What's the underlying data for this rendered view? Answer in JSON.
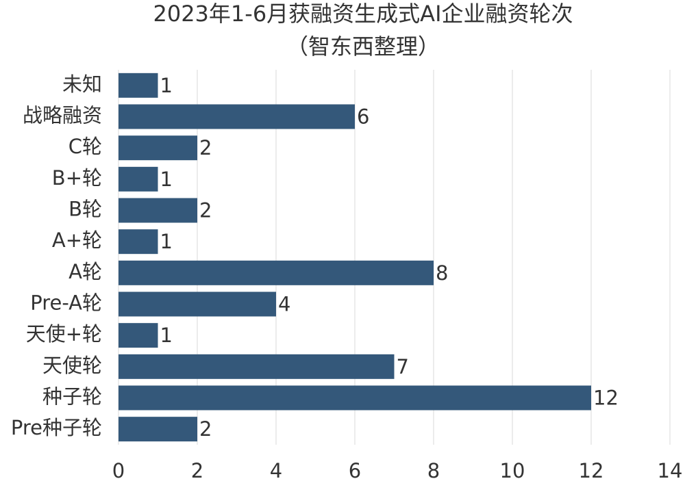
{
  "chart_data": {
    "type": "bar",
    "orientation": "horizontal",
    "title": "2023年1-6月获融资生成式AI企业融资轮次",
    "subtitle": "（智东西整理）",
    "categories": [
      "未知",
      "战略融资",
      "C轮",
      "B+轮",
      "B轮",
      "A+轮",
      "A轮",
      "Pre-A轮",
      "天使+轮",
      "天使轮",
      "种子轮",
      "Pre种子轮"
    ],
    "values": [
      1,
      6,
      2,
      1,
      2,
      1,
      8,
      4,
      1,
      7,
      12,
      2
    ],
    "color": "#34587a",
    "xlim": [
      0,
      14
    ],
    "xticks": [
      0,
      2,
      4,
      6,
      8,
      10,
      12,
      14
    ],
    "grid": true
  }
}
